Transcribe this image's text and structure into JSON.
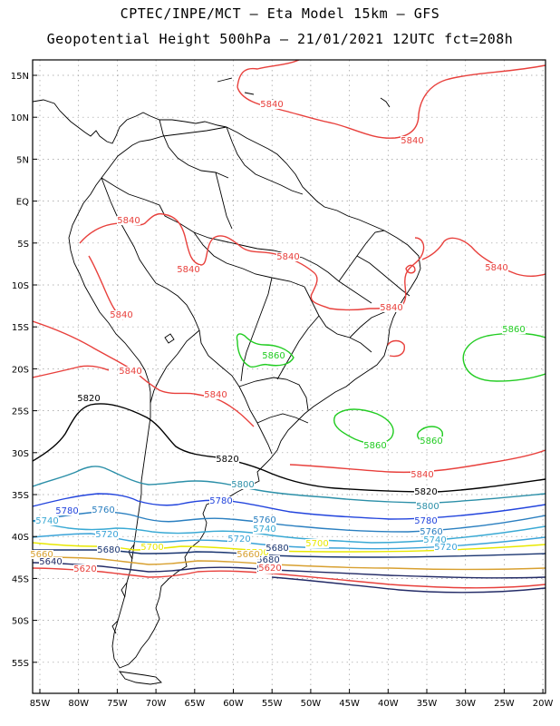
{
  "title_line1": "CPTEC/INPE/MCT –  Eta Model 15km – GFS",
  "title_line2": "Geopotential Height 500hPa – 21/01/2021 12UTC fct=208h",
  "lat_ticks": [
    "15N",
    "10N",
    "5N",
    "EQ",
    "5S",
    "10S",
    "15S",
    "20S",
    "25S",
    "30S",
    "35S",
    "40S",
    "45S",
    "50S",
    "55S"
  ],
  "lon_ticks": [
    "85W",
    "80W",
    "75W",
    "70W",
    "65W",
    "60W",
    "55W",
    "50W",
    "45W",
    "40W",
    "35W",
    "30W",
    "25W",
    "20W"
  ],
  "contour_colors": {
    "5840": "#e8403c",
    "5860": "#22cc22",
    "5820": "#000000",
    "5800": "#2b8fa8",
    "5780": "#2244dd",
    "5760": "#2a7fc0",
    "5740": "#39a9d4",
    "5720": "#3aa3d8",
    "5700": "#e8e800",
    "5680": "#1a3570",
    "5660": "#d8a030",
    "5640": "#222a66",
    "5620": "#e8403c"
  },
  "contour_labels": [
    {
      "text": "5840",
      "c": "5840"
    },
    {
      "text": "5840",
      "c": "5840"
    },
    {
      "text": "5840",
      "c": "5840"
    },
    {
      "text": "5840",
      "c": "5840"
    },
    {
      "text": "5840",
      "c": "5840"
    },
    {
      "text": "5840",
      "c": "5840"
    },
    {
      "text": "5840",
      "c": "5840"
    },
    {
      "text": "5840",
      "c": "5840"
    },
    {
      "text": "5840",
      "c": "5840"
    },
    {
      "text": "5840",
      "c": "5840"
    },
    {
      "text": "5840",
      "c": "5840"
    },
    {
      "text": "5860",
      "c": "5860"
    },
    {
      "text": "5860",
      "c": "5860"
    },
    {
      "text": "5860",
      "c": "5860"
    },
    {
      "text": "5860",
      "c": "5860"
    },
    {
      "text": "5820",
      "c": "5820"
    },
    {
      "text": "5820",
      "c": "5820"
    },
    {
      "text": "5820",
      "c": "5820"
    },
    {
      "text": "5800",
      "c": "5800"
    },
    {
      "text": "5800",
      "c": "5800"
    },
    {
      "text": "5780",
      "c": "5780"
    },
    {
      "text": "5780",
      "c": "5780"
    },
    {
      "text": "5780",
      "c": "5780"
    },
    {
      "text": "5760",
      "c": "5760"
    },
    {
      "text": "5760",
      "c": "5760"
    },
    {
      "text": "5760",
      "c": "5760"
    },
    {
      "text": "5740",
      "c": "5740"
    },
    {
      "text": "5740",
      "c": "5740"
    },
    {
      "text": "5740",
      "c": "5740"
    },
    {
      "text": "5720",
      "c": "5720"
    },
    {
      "text": "5720",
      "c": "5720"
    },
    {
      "text": "5720",
      "c": "5720"
    },
    {
      "text": "5700",
      "c": "5700"
    },
    {
      "text": "5700",
      "c": "5700"
    },
    {
      "text": "5700",
      "c": "5700"
    },
    {
      "text": "5680",
      "c": "5680"
    },
    {
      "text": "5680",
      "c": "5680"
    },
    {
      "text": "5680",
      "c": "5680"
    },
    {
      "text": "5660",
      "c": "5660"
    },
    {
      "text": "5660",
      "c": "5660"
    },
    {
      "text": "5640",
      "c": "5640"
    },
    {
      "text": "5640",
      "c": "5640"
    },
    {
      "text": "5620",
      "c": "5620"
    },
    {
      "text": "5620",
      "c": "5620"
    }
  ]
}
